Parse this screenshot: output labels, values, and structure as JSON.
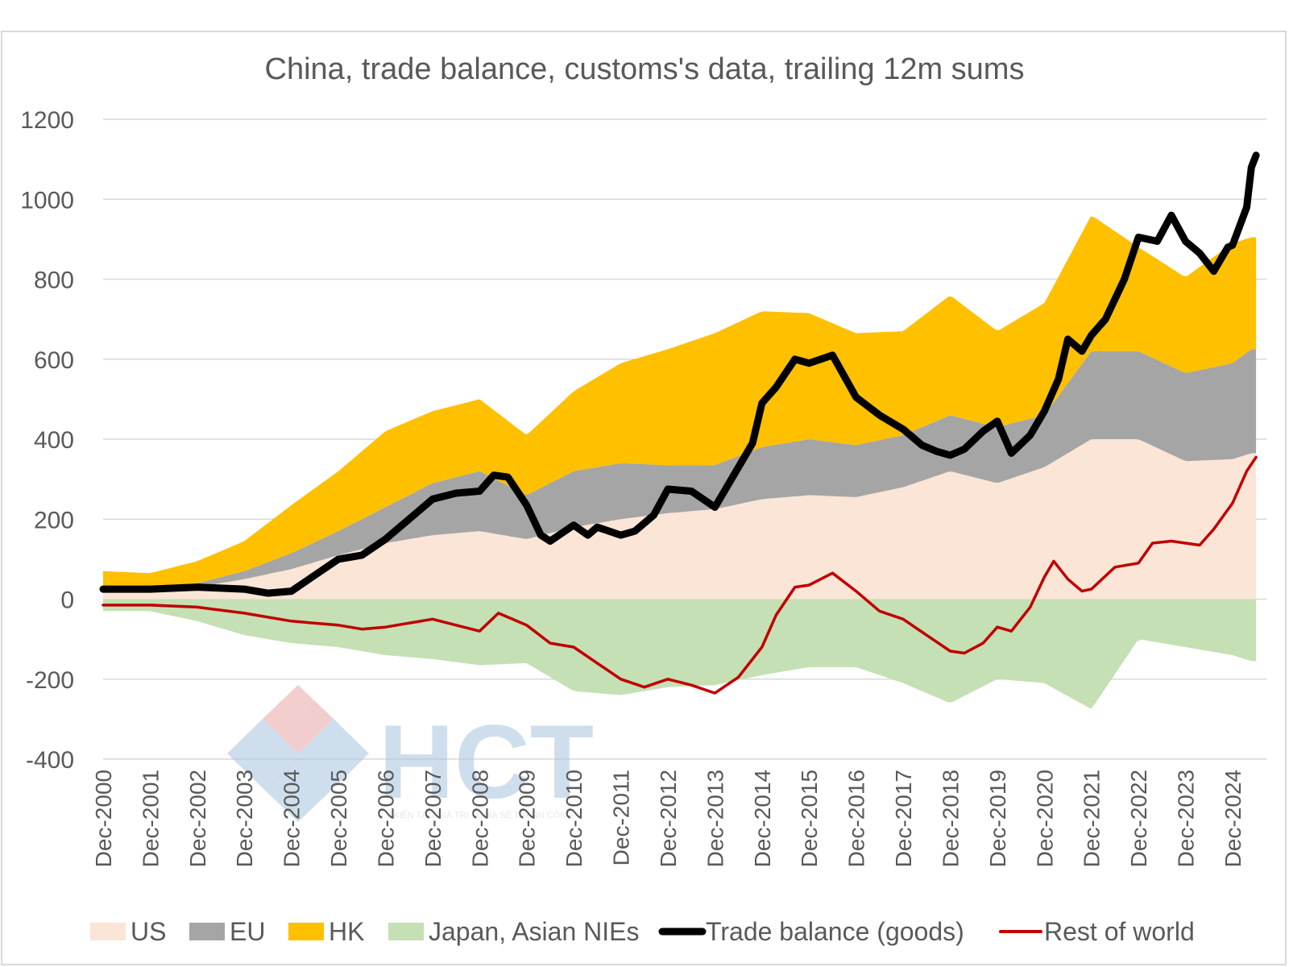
{
  "watermark": {
    "logo_text": "HCT",
    "slogan": "KIẾN TẠO GIÁ TRỊ - CHIA SẺ THÀNH CÔNG"
  },
  "chart_data": {
    "type": "area",
    "title": "China, trade balance, customs's data, trailing 12m sums",
    "xlabel": "",
    "ylabel": "",
    "ylim": [
      -400,
      1200
    ],
    "yticks": [
      -400,
      -200,
      0,
      200,
      400,
      600,
      800,
      1000,
      1200
    ],
    "grid": true,
    "legend_position": "bottom",
    "x": [
      "Dec-2000",
      "Dec-2001",
      "Dec-2002",
      "Dec-2003",
      "Dec-2004",
      "Dec-2005",
      "Dec-2006",
      "Dec-2007",
      "Dec-2008",
      "Dec-2009",
      "Dec-2010",
      "Dec-2011",
      "Dec-2012",
      "Dec-2013",
      "Dec-2014",
      "Dec-2015",
      "Dec-2016",
      "Dec-2017",
      "Dec-2018",
      "Dec-2019",
      "Dec-2020",
      "Dec-2021",
      "Dec-2022",
      "Dec-2023",
      "Dec-2024"
    ],
    "stacked_areas": [
      {
        "name": "US",
        "color": "#fbe5d6",
        "stack": "positive",
        "points": [
          [
            0,
            25
          ],
          [
            1,
            25
          ],
          [
            2,
            30
          ],
          [
            3,
            50
          ],
          [
            4,
            75
          ],
          [
            5,
            110
          ],
          [
            6,
            140
          ],
          [
            7,
            160
          ],
          [
            8,
            170
          ],
          [
            9,
            150
          ],
          [
            10,
            180
          ],
          [
            11,
            200
          ],
          [
            12,
            215
          ],
          [
            13,
            225
          ],
          [
            14,
            250
          ],
          [
            15,
            260
          ],
          [
            16,
            255
          ],
          [
            17,
            280
          ],
          [
            18,
            320
          ],
          [
            19,
            290
          ],
          [
            20,
            330
          ],
          [
            21,
            400
          ],
          [
            22,
            400
          ],
          [
            23,
            345
          ],
          [
            24,
            350
          ],
          [
            24.4,
            365
          ]
        ]
      },
      {
        "name": "EU",
        "color": "#a5a5a5",
        "stack": "positive",
        "points": [
          [
            0,
            5
          ],
          [
            1,
            5
          ],
          [
            2,
            10
          ],
          [
            3,
            20
          ],
          [
            4,
            40
          ],
          [
            5,
            60
          ],
          [
            6,
            90
          ],
          [
            7,
            130
          ],
          [
            8,
            150
          ],
          [
            9,
            110
          ],
          [
            10,
            140
          ],
          [
            11,
            140
          ],
          [
            12,
            120
          ],
          [
            13,
            110
          ],
          [
            14,
            130
          ],
          [
            15,
            140
          ],
          [
            16,
            130
          ],
          [
            17,
            130
          ],
          [
            18,
            140
          ],
          [
            19,
            140
          ],
          [
            20,
            130
          ],
          [
            21,
            220
          ],
          [
            22,
            220
          ],
          [
            23,
            220
          ],
          [
            24,
            240
          ],
          [
            24.4,
            260
          ]
        ]
      },
      {
        "name": "HK",
        "color": "#ffc000",
        "stack": "positive",
        "points": [
          [
            0,
            40
          ],
          [
            1,
            35
          ],
          [
            2,
            55
          ],
          [
            3,
            75
          ],
          [
            4,
            120
          ],
          [
            5,
            150
          ],
          [
            6,
            190
          ],
          [
            7,
            180
          ],
          [
            8,
            180
          ],
          [
            9,
            150
          ],
          [
            10,
            200
          ],
          [
            11,
            250
          ],
          [
            12,
            290
          ],
          [
            13,
            330
          ],
          [
            14,
            340
          ],
          [
            15,
            315
          ],
          [
            16,
            280
          ],
          [
            17,
            260
          ],
          [
            18,
            300
          ],
          [
            19,
            240
          ],
          [
            20,
            280
          ],
          [
            21,
            340
          ],
          [
            22,
            260
          ],
          [
            23,
            240
          ],
          [
            24,
            300
          ],
          [
            24.4,
            280
          ]
        ]
      },
      {
        "name": "Japan, Asian NIEs",
        "color": "#c5e0b4",
        "stack": "negative",
        "points": [
          [
            0,
            -30
          ],
          [
            1,
            -30
          ],
          [
            2,
            -55
          ],
          [
            3,
            -90
          ],
          [
            4,
            -110
          ],
          [
            5,
            -120
          ],
          [
            6,
            -140
          ],
          [
            7,
            -150
          ],
          [
            8,
            -165
          ],
          [
            9,
            -160
          ],
          [
            10,
            -230
          ],
          [
            11,
            -240
          ],
          [
            12,
            -220
          ],
          [
            13,
            -215
          ],
          [
            14,
            -190
          ],
          [
            15,
            -170
          ],
          [
            16,
            -170
          ],
          [
            17,
            -210
          ],
          [
            18,
            -260
          ],
          [
            19,
            -200
          ],
          [
            20,
            -210
          ],
          [
            21,
            -275
          ],
          [
            22,
            -100
          ],
          [
            23,
            -120
          ],
          [
            24,
            -140
          ],
          [
            24.4,
            -155
          ]
        ]
      }
    ],
    "lines": [
      {
        "name": "Trade balance (goods)",
        "color": "#000000",
        "points": [
          [
            0,
            25
          ],
          [
            1,
            25
          ],
          [
            2,
            30
          ],
          [
            3,
            25
          ],
          [
            3.5,
            15
          ],
          [
            4,
            20
          ],
          [
            4.5,
            60
          ],
          [
            5,
            100
          ],
          [
            5.5,
            110
          ],
          [
            6,
            150
          ],
          [
            6.5,
            200
          ],
          [
            7,
            250
          ],
          [
            7.5,
            265
          ],
          [
            8,
            270
          ],
          [
            8.3,
            310
          ],
          [
            8.6,
            305
          ],
          [
            9,
            235
          ],
          [
            9.3,
            160
          ],
          [
            9.5,
            145
          ],
          [
            10,
            185
          ],
          [
            10.3,
            160
          ],
          [
            10.5,
            180
          ],
          [
            11,
            160
          ],
          [
            11.3,
            170
          ],
          [
            11.7,
            210
          ],
          [
            12,
            275
          ],
          [
            12.5,
            270
          ],
          [
            13,
            230
          ],
          [
            13.4,
            310
          ],
          [
            13.8,
            390
          ],
          [
            14,
            490
          ],
          [
            14.3,
            530
          ],
          [
            14.7,
            600
          ],
          [
            15,
            590
          ],
          [
            15.5,
            610
          ],
          [
            16,
            505
          ],
          [
            16.5,
            460
          ],
          [
            17,
            425
          ],
          [
            17.4,
            385
          ],
          [
            17.7,
            370
          ],
          [
            18,
            360
          ],
          [
            18.3,
            375
          ],
          [
            18.7,
            420
          ],
          [
            19,
            445
          ],
          [
            19.3,
            365
          ],
          [
            19.7,
            410
          ],
          [
            20,
            470
          ],
          [
            20.3,
            550
          ],
          [
            20.5,
            650
          ],
          [
            20.8,
            620
          ],
          [
            21,
            660
          ],
          [
            21.3,
            700
          ],
          [
            21.7,
            800
          ],
          [
            22,
            905
          ],
          [
            22.4,
            895
          ],
          [
            22.7,
            960
          ],
          [
            23,
            895
          ],
          [
            23.3,
            865
          ],
          [
            23.6,
            820
          ],
          [
            23.9,
            880
          ],
          [
            24,
            885
          ],
          [
            24.3,
            980
          ],
          [
            24.4,
            1080
          ],
          [
            24.5,
            1110
          ]
        ]
      },
      {
        "name": "Rest of world",
        "color": "#c00000",
        "points": [
          [
            0,
            -15
          ],
          [
            1,
            -15
          ],
          [
            2,
            -20
          ],
          [
            3,
            -35
          ],
          [
            4,
            -55
          ],
          [
            5,
            -65
          ],
          [
            5.5,
            -75
          ],
          [
            6,
            -70
          ],
          [
            7,
            -50
          ],
          [
            7.5,
            -65
          ],
          [
            8,
            -80
          ],
          [
            8.4,
            -35
          ],
          [
            9,
            -65
          ],
          [
            9.5,
            -110
          ],
          [
            10,
            -120
          ],
          [
            10.5,
            -160
          ],
          [
            11,
            -200
          ],
          [
            11.5,
            -220
          ],
          [
            12,
            -200
          ],
          [
            12.5,
            -215
          ],
          [
            13,
            -235
          ],
          [
            13.5,
            -195
          ],
          [
            14,
            -120
          ],
          [
            14.3,
            -40
          ],
          [
            14.7,
            30
          ],
          [
            15,
            35
          ],
          [
            15.5,
            65
          ],
          [
            16,
            20
          ],
          [
            16.5,
            -30
          ],
          [
            17,
            -50
          ],
          [
            17.5,
            -90
          ],
          [
            18,
            -130
          ],
          [
            18.3,
            -135
          ],
          [
            18.7,
            -110
          ],
          [
            19,
            -70
          ],
          [
            19.3,
            -80
          ],
          [
            19.7,
            -20
          ],
          [
            20,
            55
          ],
          [
            20.2,
            95
          ],
          [
            20.5,
            50
          ],
          [
            20.8,
            20
          ],
          [
            21,
            25
          ],
          [
            21.5,
            80
          ],
          [
            22,
            90
          ],
          [
            22.3,
            140
          ],
          [
            22.7,
            145
          ],
          [
            23,
            140
          ],
          [
            23.3,
            135
          ],
          [
            23.6,
            175
          ],
          [
            24,
            240
          ],
          [
            24.3,
            320
          ],
          [
            24.5,
            355
          ]
        ]
      }
    ]
  }
}
